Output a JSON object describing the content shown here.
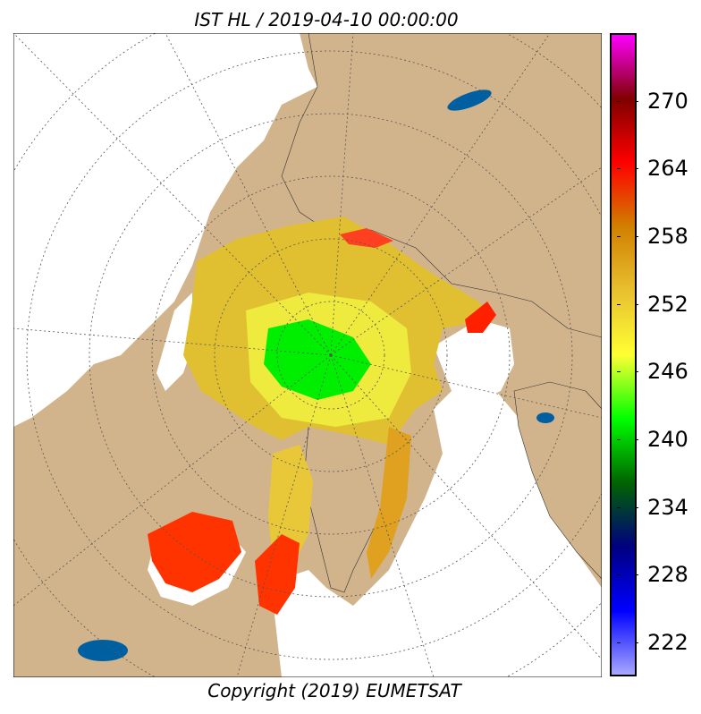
{
  "title": "IST HL / 2019-04-10 00:00:00",
  "copyright": "Copyright (2019)  EUMETSAT",
  "colorbar": {
    "ticks": [
      "270",
      "264",
      "258",
      "252",
      "246",
      "240",
      "234",
      "228",
      "222"
    ],
    "tick_values": [
      270,
      264,
      258,
      252,
      246,
      240,
      234,
      228,
      222
    ],
    "range": [
      219,
      276
    ],
    "colors": [
      "#8f8fff",
      "#0000ff",
      "#000080",
      "#006400",
      "#00ff00",
      "#ffff33",
      "#daa520",
      "#ff0000",
      "#800000",
      "#ff00ff"
    ]
  },
  "map": {
    "land_color": "#d2b48c",
    "water_color": "#005fa0",
    "ice_colors": [
      "#e0c030",
      "#00ee00",
      "#ff3300",
      "#f0f040"
    ]
  }
}
